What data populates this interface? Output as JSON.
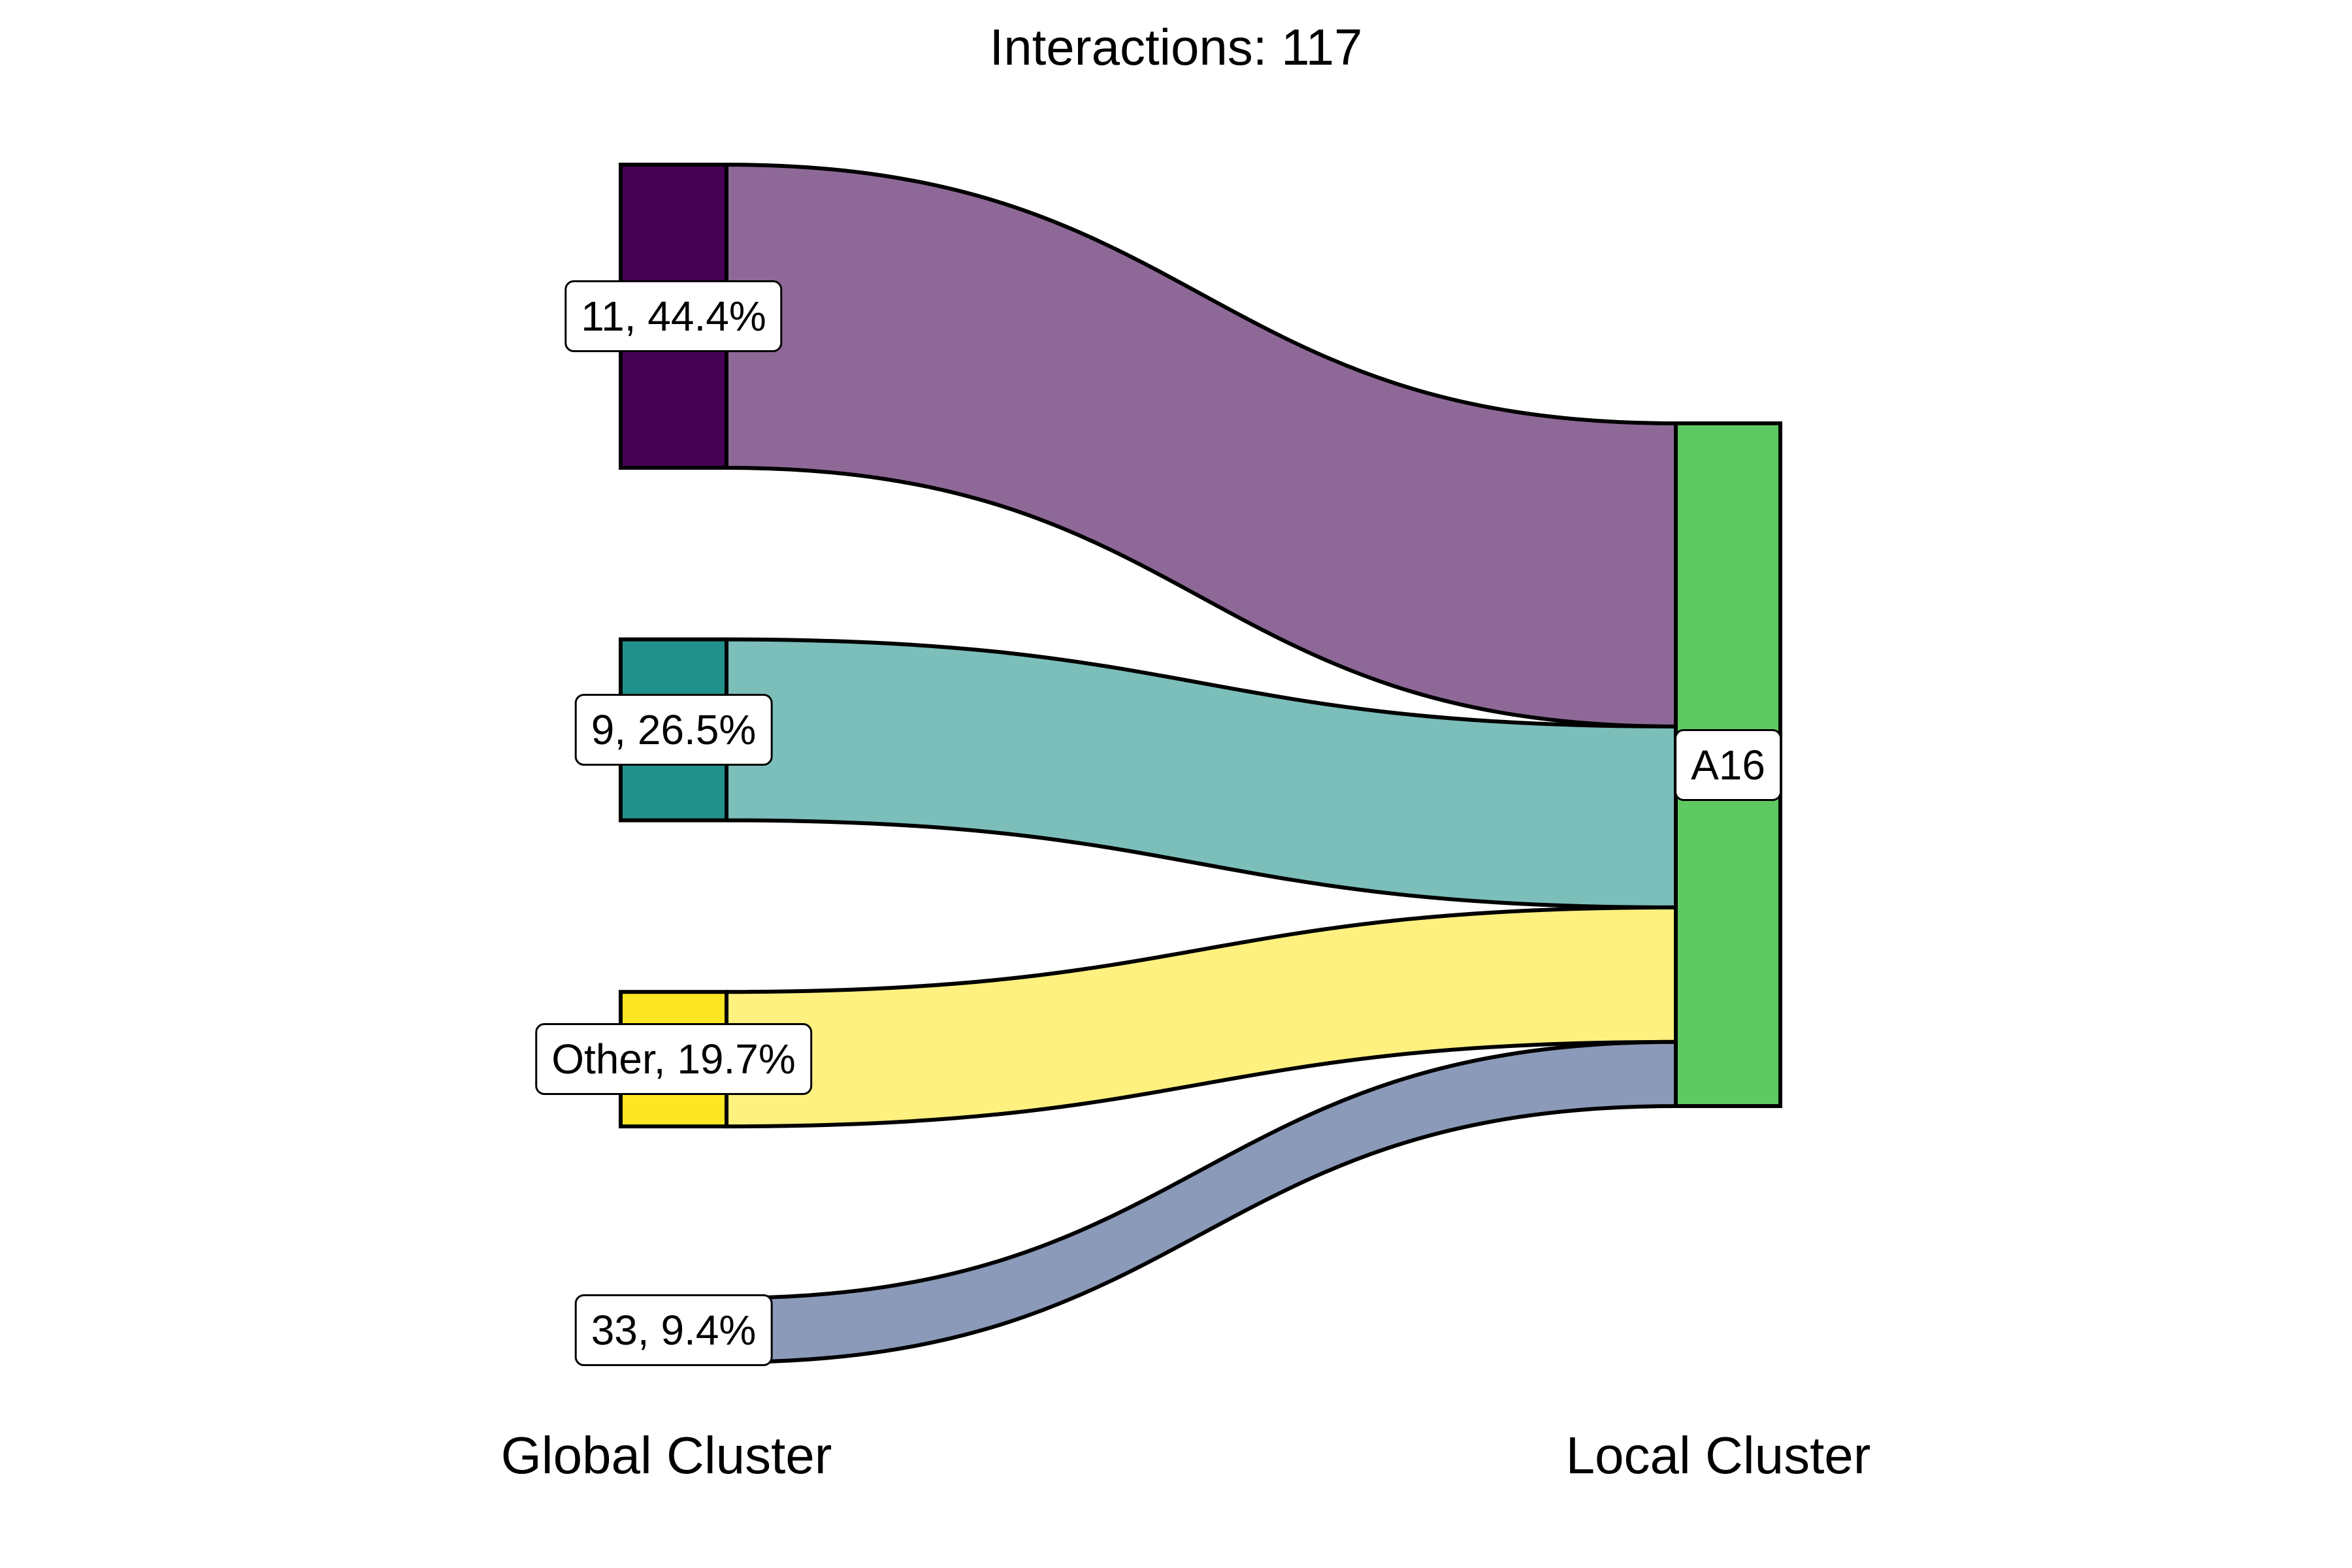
{
  "chart_data": {
    "type": "sankey",
    "title": "Interactions: 117",
    "xlabel_left": "Global Cluster",
    "xlabel_right": "Local Cluster",
    "sources": [
      {
        "name": "11",
        "percent": 44.4,
        "label": "11, 44.4%",
        "node_color": "#440154",
        "flow_color": "#8e6998"
      },
      {
        "name": "9",
        "percent": 26.5,
        "label": "9, 26.5%",
        "node_color": "#21918c",
        "flow_color": "#7cbeba"
      },
      {
        "name": "Other",
        "percent": 19.7,
        "label": "Other, 19.7%",
        "node_color": "#fde725",
        "flow_color": "#fef17f"
      },
      {
        "name": "33",
        "percent": 9.4,
        "label": "33, 9.4%",
        "node_color": "#8b9ab9",
        "flow_color": "#8b9ab9"
      }
    ],
    "targets": [
      {
        "name": "A16",
        "label": "A16",
        "node_color": "#5ec962"
      }
    ],
    "links": [
      {
        "source": "11",
        "target": "A16",
        "percent": 44.4
      },
      {
        "source": "9",
        "target": "A16",
        "percent": 26.5
      },
      {
        "source": "Other",
        "target": "A16",
        "percent": 19.7
      },
      {
        "source": "33",
        "target": "A16",
        "percent": 9.4
      }
    ]
  }
}
